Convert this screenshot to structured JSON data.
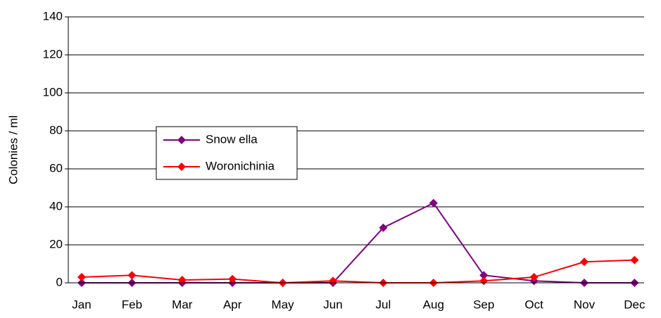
{
  "chart_data": {
    "type": "line",
    "y_label": "Colonies / ml",
    "categories": [
      "Jan",
      "Feb",
      "Mar",
      "Apr",
      "May",
      "Jun",
      "Jul",
      "Aug",
      "Sep",
      "Oct",
      "Nov",
      "Dec"
    ],
    "series": [
      {
        "name": "Snow ella",
        "color": "#800080",
        "values": [
          0,
          0,
          0,
          0,
          0,
          0,
          29,
          42,
          4,
          1,
          0,
          0
        ]
      },
      {
        "name": "Woronichinia",
        "color": "#ff0000",
        "values": [
          3,
          4,
          1.5,
          2,
          0,
          1,
          0,
          0,
          1,
          3,
          11,
          12
        ]
      }
    ],
    "ylim": [
      0,
      140
    ],
    "yticks": [
      0,
      20,
      40,
      60,
      80,
      100,
      120,
      140
    ],
    "grid": true
  }
}
